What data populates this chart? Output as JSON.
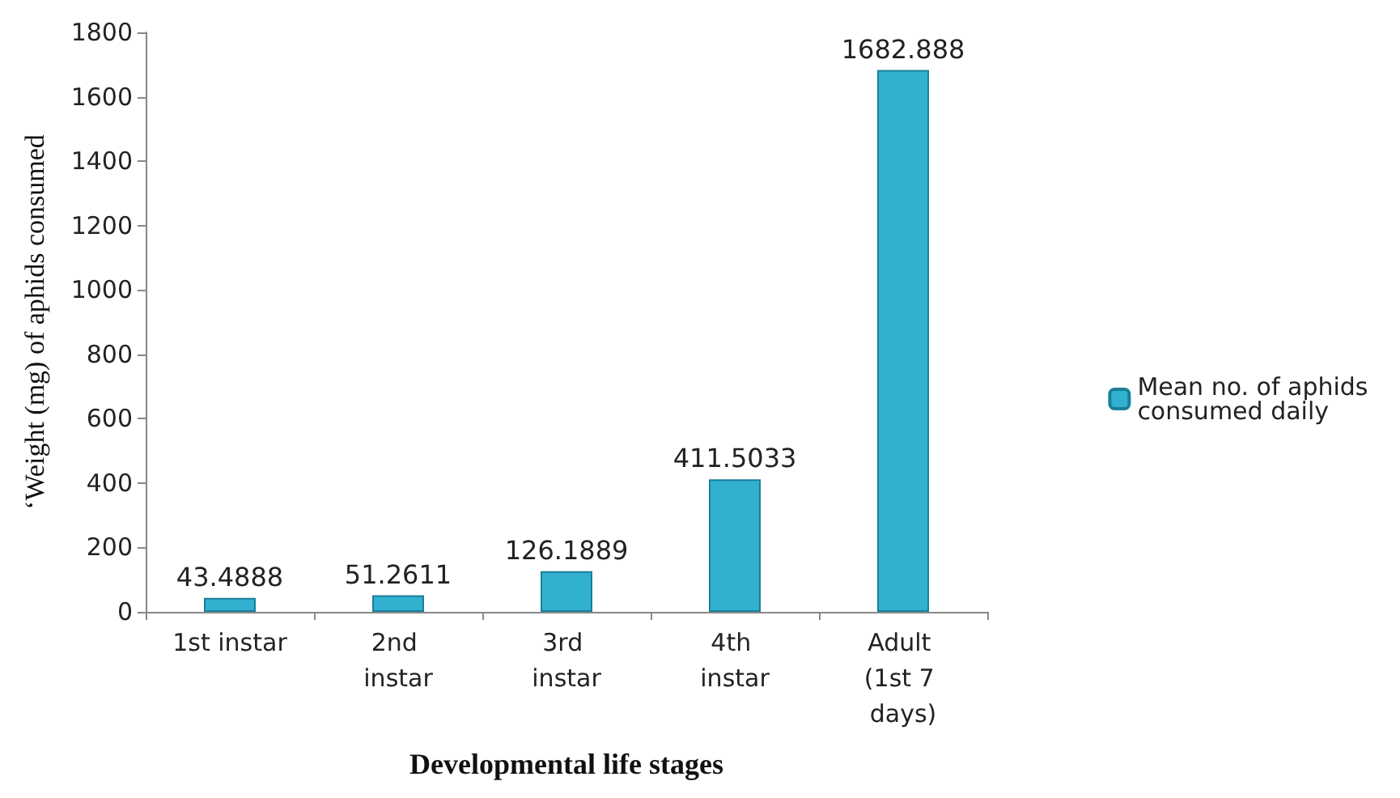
{
  "chart_data": {
    "type": "bar",
    "xlabel": "Developmental life stages",
    "ylabel": "‘Weight (mg) of aphids consumed",
    "categories": [
      "1st instar",
      "2nd instar",
      "3rd instar",
      "4th instar",
      "Adult (1st 7 days)"
    ],
    "series": [
      {
        "name": "Mean no. of aphids consumed daily",
        "color": "#31b0d0",
        "values": [
          43.4888,
          51.2611,
          126.1889,
          411.5033,
          1682.888
        ]
      }
    ],
    "ylim": [
      0,
      1800
    ],
    "yticks": [
      0,
      200,
      400,
      600,
      800,
      1000,
      1200,
      1400,
      1600,
      1800
    ],
    "grid": false,
    "legend": "right",
    "data_labels": true
  }
}
